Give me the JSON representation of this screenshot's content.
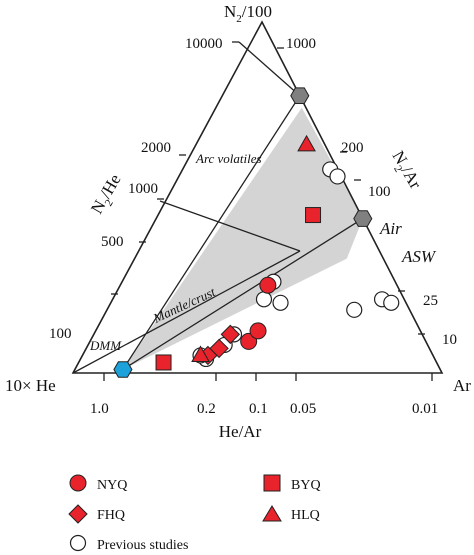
{
  "chart_data": {
    "type": "scatter",
    "subtype": "ternary",
    "vertices": {
      "top": {
        "label": "N2/100",
        "label_main": "N",
        "label_sub": "2",
        "label_rest": "/100"
      },
      "left": {
        "label": "10× He"
      },
      "right": {
        "label": "Ar"
      }
    },
    "axes": {
      "left_edge": {
        "label_main": "N",
        "label_sub": "2",
        "label_rest": "/He",
        "ticks": [
          "10000",
          "2000",
          "1000",
          "500",
          "100"
        ]
      },
      "right_edge": {
        "label_main": "N",
        "label_sub": "2",
        "label_rest": "/Ar",
        "ticks": [
          "1000",
          "200",
          "100",
          "25",
          "10"
        ]
      },
      "bottom_edge": {
        "label": "He/Ar",
        "ticks": [
          "1.0",
          "0.2",
          "0.1",
          "0.05",
          "0.01"
        ]
      }
    },
    "annotations": {
      "arc_volatiles": "Arc volatiles",
      "mantle_crust": "Mantle/crust",
      "dmm": "DMM",
      "air": "Air",
      "asw": "ASW"
    },
    "colors": {
      "sample": "#e8232b",
      "previous_fill": "#ffffff",
      "field": "#d4d4d4",
      "dmm": "#1da1db",
      "endmember": "#808080"
    },
    "endmembers": [
      {
        "name": "DMM",
        "n2_100": 0.01,
        "he10": 0.86,
        "ar": 0.13,
        "marker": "hexagon",
        "color": "#1da1db"
      },
      {
        "name": "Air",
        "n2_100": 0.79,
        "he10": 0.0,
        "ar": 0.21,
        "marker": "hexagon",
        "color": "#808080"
      },
      {
        "name": "ASW",
        "n2_100": 0.44,
        "he10": 0.0,
        "ar": 0.56,
        "marker": "hexagon",
        "color": "#808080"
      }
    ],
    "series": [
      {
        "name": "NYQ",
        "marker": "circle",
        "points": [
          {
            "n2_100": 0.09,
            "he10": 0.48,
            "ar": 0.43
          },
          {
            "n2_100": 0.12,
            "he10": 0.44,
            "ar": 0.44
          },
          {
            "n2_100": 0.25,
            "he10": 0.35,
            "ar": 0.4
          }
        ]
      },
      {
        "name": "FHQ",
        "marker": "diamond",
        "points": [
          {
            "n2_100": 0.05,
            "he10": 0.61,
            "ar": 0.34
          },
          {
            "n2_100": 0.07,
            "he10": 0.57,
            "ar": 0.36
          },
          {
            "n2_100": 0.11,
            "he10": 0.52,
            "ar": 0.37
          }
        ]
      },
      {
        "name": "BYQ",
        "marker": "square",
        "points": [
          {
            "n2_100": 0.03,
            "he10": 0.74,
            "ar": 0.23
          },
          {
            "n2_100": 0.45,
            "he10": 0.13,
            "ar": 0.42
          }
        ]
      },
      {
        "name": "HLQ",
        "marker": "triangle",
        "points": [
          {
            "n2_100": 0.05,
            "he10": 0.63,
            "ar": 0.32
          },
          {
            "n2_100": 0.65,
            "he10": 0.05,
            "ar": 0.3
          }
        ]
      },
      {
        "name": "Previous studies",
        "marker": "open-circle",
        "points": [
          {
            "n2_100": 0.04,
            "he10": 0.62,
            "ar": 0.34
          },
          {
            "n2_100": 0.05,
            "he10": 0.63,
            "ar": 0.32
          },
          {
            "n2_100": 0.08,
            "he10": 0.55,
            "ar": 0.37
          },
          {
            "n2_100": 0.11,
            "he10": 0.51,
            "ar": 0.38
          },
          {
            "n2_100": 0.21,
            "he10": 0.38,
            "ar": 0.41
          },
          {
            "n2_100": 0.26,
            "he10": 0.33,
            "ar": 0.41
          },
          {
            "n2_100": 0.2,
            "he10": 0.34,
            "ar": 0.46
          },
          {
            "n2_100": 0.58,
            "he10": 0.02,
            "ar": 0.4
          },
          {
            "n2_100": 0.56,
            "he10": 0.01,
            "ar": 0.43
          },
          {
            "n2_100": 0.18,
            "he10": 0.15,
            "ar": 0.67
          },
          {
            "n2_100": 0.21,
            "he10": 0.06,
            "ar": 0.73
          },
          {
            "n2_100": 0.2,
            "he10": 0.04,
            "ar": 0.76
          }
        ]
      }
    ],
    "legend": {
      "placement": "bottom",
      "entries": [
        {
          "label": "NYQ",
          "marker": "circle"
        },
        {
          "label": "BYQ",
          "marker": "square"
        },
        {
          "label": "FHQ",
          "marker": "diamond"
        },
        {
          "label": "HLQ",
          "marker": "triangle"
        },
        {
          "label": "Previous studies",
          "marker": "open-circle"
        }
      ]
    }
  }
}
